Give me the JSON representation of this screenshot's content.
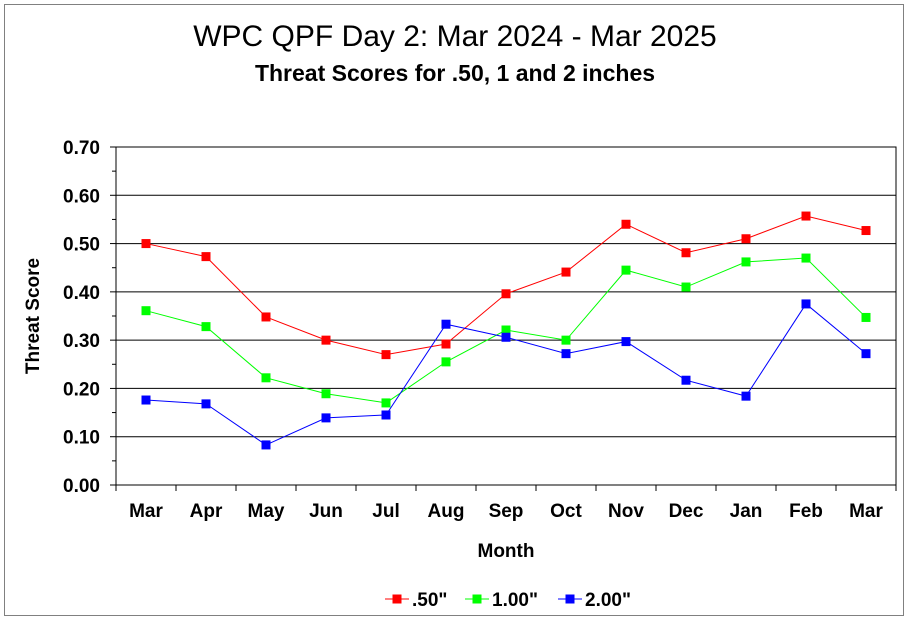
{
  "chart_data": {
    "type": "line",
    "title": "WPC QPF Day 2: Mar 2024 - Mar 2025",
    "subtitle": "Threat Scores for .50, 1 and 2 inches",
    "xlabel": "Month",
    "ylabel": "Threat Score",
    "categories": [
      "Mar",
      "Apr",
      "May",
      "Jun",
      "Jul",
      "Aug",
      "Sep",
      "Oct",
      "Nov",
      "Dec",
      "Jan",
      "Feb",
      "Mar"
    ],
    "ylim": [
      0,
      0.7
    ],
    "yticks": [
      "0.00",
      "0.10",
      "0.20",
      "0.30",
      "0.40",
      "0.50",
      "0.60",
      "0.70"
    ],
    "grid": "horizontal",
    "legend_position": "bottom",
    "series": [
      {
        "name": ".50\"",
        "color": "#ff0000",
        "values": [
          0.5,
          0.473,
          0.348,
          0.3,
          0.27,
          0.292,
          0.396,
          0.441,
          0.54,
          0.481,
          0.51,
          0.557,
          0.527
        ]
      },
      {
        "name": "1.00\"",
        "color": "#00ff00",
        "values": [
          0.361,
          0.328,
          0.222,
          0.189,
          0.17,
          0.255,
          0.321,
          0.3,
          0.445,
          0.41,
          0.462,
          0.47,
          0.347
        ]
      },
      {
        "name": "2.00\"",
        "color": "#0000ff",
        "values": [
          0.176,
          0.168,
          0.083,
          0.139,
          0.145,
          0.333,
          0.306,
          0.272,
          0.297,
          0.217,
          0.184,
          0.375,
          0.272
        ]
      }
    ]
  }
}
